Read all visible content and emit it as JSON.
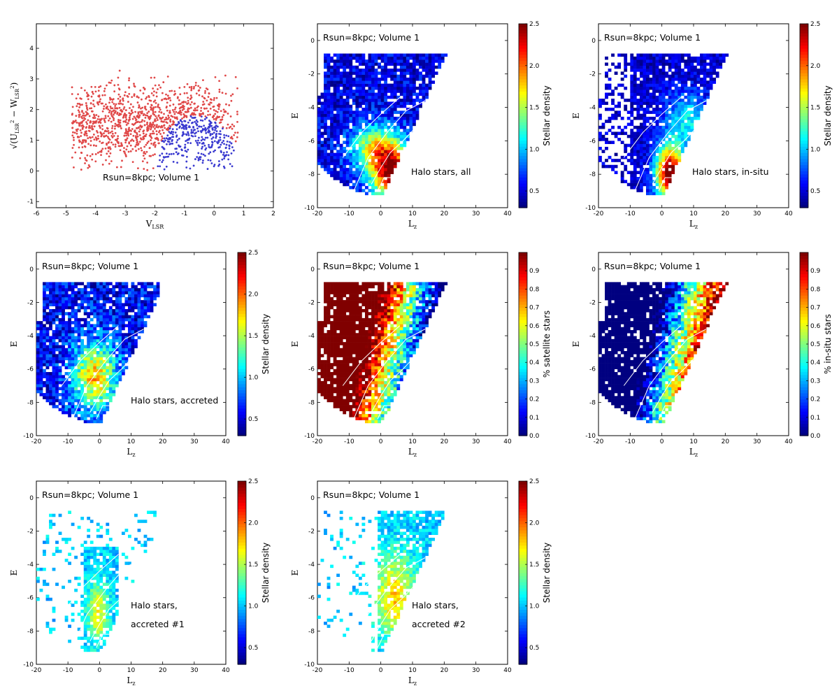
{
  "colors": {
    "accreted_points": "#e04848",
    "insitu_points": "#3a3ad0",
    "contour": "#ffffff",
    "colormap": "jet"
  },
  "chart_data": [
    {
      "id": "p1",
      "type": "scatter",
      "xlabel": "V_LSR",
      "ylabel": "sqrt(U_LSR^2 + W_LSR^2)",
      "xlim": [
        -6,
        2
      ],
      "ylim": [
        -1.2,
        4.8
      ],
      "xticks": [
        "-6",
        "-5",
        "-4",
        "-3",
        "-2",
        "-1",
        "0",
        "1",
        "2"
      ],
      "yticks": [
        "-1",
        "0",
        "1",
        "2",
        "3",
        "4"
      ],
      "annotations": [
        "Rsun=8kpc; Volume 1"
      ],
      "series": [
        {
          "color": "#e04848",
          "approx_extent": {
            "x": [
              -5.2,
              0.9
            ],
            "y": [
              0,
              3.6
            ]
          }
        },
        {
          "color": "#3a3ad0",
          "approx_extent": {
            "x": [
              -2.0,
              1.2
            ],
            "y": [
              0,
              1.8
            ]
          }
        }
      ]
    },
    {
      "id": "p2",
      "type": "heatmap",
      "xlabel": "L_z",
      "ylabel": "E",
      "xlim": [
        -20,
        40
      ],
      "ylim": [
        -10,
        1
      ],
      "xticks": [
        "-20",
        "-10",
        "0",
        "10",
        "20",
        "30",
        "40"
      ],
      "yticks": [
        "-10",
        "-8",
        "-6",
        "-4",
        "-2",
        "0"
      ],
      "annotations": [
        "Rsun=8kpc; Volume 1",
        "Halo stars, all"
      ],
      "colorbar": {
        "label": "Stellar density",
        "range": [
          0.3,
          2.5
        ],
        "ticks": [
          "0.5",
          "1.0",
          "1.5",
          "2.0",
          "2.5"
        ]
      }
    },
    {
      "id": "p3",
      "type": "heatmap",
      "xlabel": "L_z",
      "ylabel": "E",
      "xlim": [
        -20,
        40
      ],
      "ylim": [
        -10,
        1
      ],
      "xticks": [
        "-20",
        "-10",
        "0",
        "10",
        "20",
        "30",
        "40"
      ],
      "yticks": [
        "-10",
        "-8",
        "-6",
        "-4",
        "-2",
        "0"
      ],
      "annotations": [
        "Rsun=8kpc; Volume 1",
        "Halo stars, in-situ"
      ],
      "colorbar": {
        "label": "Stellar density",
        "range": [
          0.3,
          2.5
        ],
        "ticks": [
          "0.5",
          "1.0",
          "1.5",
          "2.0",
          "2.5"
        ]
      }
    },
    {
      "id": "p4",
      "type": "heatmap",
      "xlabel": "L_z",
      "ylabel": "E",
      "xlim": [
        -20,
        40
      ],
      "ylim": [
        -10,
        1
      ],
      "xticks": [
        "-20",
        "-10",
        "0",
        "10",
        "20",
        "30",
        "40"
      ],
      "yticks": [
        "-10",
        "-8",
        "-6",
        "-4",
        "-2",
        "0"
      ],
      "annotations": [
        "Rsun=8kpc; Volume 1",
        "Halo stars, accreted"
      ],
      "colorbar": {
        "label": "Stellar density",
        "range": [
          0.3,
          2.5
        ],
        "ticks": [
          "0.5",
          "1.0",
          "1.5",
          "2.0",
          "2.5"
        ]
      }
    },
    {
      "id": "p5",
      "type": "heatmap",
      "xlabel": "L_z",
      "ylabel": "E",
      "xlim": [
        -20,
        40
      ],
      "ylim": [
        -10,
        1
      ],
      "xticks": [
        "-20",
        "-10",
        "0",
        "10",
        "20",
        "30",
        "40"
      ],
      "yticks": [
        "-10",
        "-8",
        "-6",
        "-4",
        "-2",
        "0"
      ],
      "annotations": [
        "Rsun=8kpc; Volume 1"
      ],
      "colorbar": {
        "label": "% satellite stars",
        "range": [
          0,
          1
        ],
        "ticks": [
          "0.0",
          "0.1",
          "0.2",
          "0.3",
          "0.4",
          "0.5",
          "0.6",
          "0.7",
          "0.8",
          "0.9"
        ]
      }
    },
    {
      "id": "p6",
      "type": "heatmap",
      "xlabel": "L_z",
      "ylabel": "E",
      "xlim": [
        -20,
        40
      ],
      "ylim": [
        -10,
        1
      ],
      "xticks": [
        "-20",
        "-10",
        "0",
        "10",
        "20",
        "30",
        "40"
      ],
      "yticks": [
        "-10",
        "-8",
        "-6",
        "-4",
        "-2",
        "0"
      ],
      "annotations": [
        "Rsun=8kpc; Volume 1"
      ],
      "colorbar": {
        "label": "% in-situ stars",
        "range": [
          0,
          1
        ],
        "ticks": [
          "0.0",
          "0.1",
          "0.2",
          "0.3",
          "0.4",
          "0.5",
          "0.6",
          "0.7",
          "0.8",
          "0.9"
        ]
      }
    },
    {
      "id": "p7",
      "type": "heatmap",
      "xlabel": "L_z",
      "ylabel": "E",
      "xlim": [
        -20,
        40
      ],
      "ylim": [
        -10,
        1
      ],
      "xticks": [
        "-20",
        "-10",
        "0",
        "10",
        "20",
        "30",
        "40"
      ],
      "yticks": [
        "-10",
        "-8",
        "-6",
        "-4",
        "-2",
        "0"
      ],
      "annotations": [
        "Rsun=8kpc; Volume 1",
        "Halo stars,",
        "accreted #1"
      ],
      "colorbar": {
        "label": "Stellar density",
        "range": [
          0.3,
          2.5
        ],
        "ticks": [
          "0.5",
          "1.0",
          "1.5",
          "2.0",
          "2.5"
        ]
      }
    },
    {
      "id": "p8",
      "type": "heatmap",
      "xlabel": "L_z",
      "ylabel": "E",
      "xlim": [
        -20,
        40
      ],
      "ylim": [
        -10,
        1
      ],
      "xticks": [
        "-20",
        "-10",
        "0",
        "10",
        "20",
        "30",
        "40"
      ],
      "yticks": [
        "-10",
        "-8",
        "-6",
        "-4",
        "-2",
        "0"
      ],
      "annotations": [
        "Rsun=8kpc; Volume 1",
        "Halo stars,",
        "accreted #2"
      ],
      "colorbar": {
        "label": "Stellar density",
        "range": [
          0.3,
          2.5
        ],
        "ticks": [
          "0.5",
          "1.0",
          "1.5",
          "2.0",
          "2.5"
        ]
      }
    }
  ]
}
